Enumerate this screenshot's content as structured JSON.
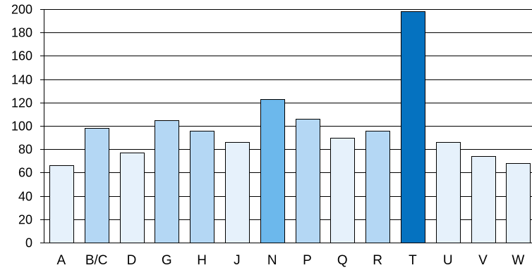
{
  "chart_data": {
    "type": "bar",
    "title": "",
    "xlabel": "",
    "ylabel": "",
    "ylim": [
      0,
      200
    ],
    "yticks": [
      0,
      20,
      40,
      60,
      80,
      100,
      120,
      140,
      160,
      180,
      200
    ],
    "categories": [
      "A",
      "B/C",
      "D",
      "G",
      "H",
      "J",
      "N",
      "P",
      "Q",
      "R",
      "T",
      "U",
      "V",
      "W"
    ],
    "values": [
      66,
      98,
      77,
      105,
      96,
      86,
      123,
      106,
      90,
      96,
      198,
      86,
      74,
      68
    ],
    "bar_colors": [
      "#e6f1fb",
      "#b4d7f4",
      "#e6f1fb",
      "#b4d7f4",
      "#b4d7f4",
      "#e6f1fb",
      "#6cb8ec",
      "#b4d7f4",
      "#e6f1fb",
      "#b4d7f4",
      "#0572c0",
      "#e6f1fb",
      "#e6f1fb",
      "#e6f1fb"
    ],
    "grid": true,
    "legend": "none"
  }
}
